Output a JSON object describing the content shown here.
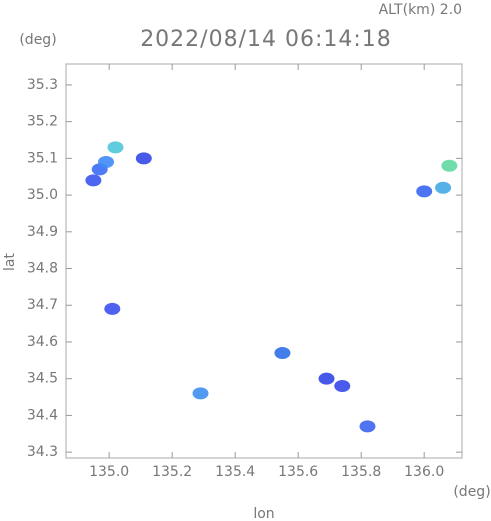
{
  "chart_data": {
    "type": "scatter",
    "title": "2022/08/14 06:14:18",
    "subtitle": "ALT(km) 2.0",
    "x_label": "lon",
    "y_label": "lat",
    "x_unit": "(deg)",
    "y_unit": "(deg)",
    "x": [
      134.95,
      134.97,
      134.99,
      135.02,
      135.11,
      135.01,
      135.29,
      135.55,
      135.69,
      135.74,
      135.82,
      136.0,
      136.06,
      136.08
    ],
    "y": [
      35.04,
      35.07,
      35.09,
      35.13,
      35.1,
      34.69,
      34.46,
      34.57,
      34.5,
      34.48,
      34.37,
      35.01,
      35.02,
      35.08
    ],
    "colors": [
      "#3a55f0",
      "#3a6cf5",
      "#3f8af5",
      "#4fc7d8",
      "#3448e8",
      "#3c50ee",
      "#3f8ef0",
      "#2f6fe8",
      "#3246e4",
      "#3548ea",
      "#3d64ef",
      "#3b66f0",
      "#43a9e4",
      "#5fd9a0"
    ],
    "xlim": [
      134.863,
      136.12
    ],
    "ylim": [
      34.284,
      35.357
    ],
    "xticks": [
      {
        "value": 135.0,
        "label": "135.0"
      },
      135.2,
      135.4,
      135.6,
      135.8,
      {
        "value": 136.0,
        "label": "136.0"
      }
    ],
    "yticks": [
      34.3,
      34.4,
      34.5,
      34.6,
      34.7,
      34.8,
      34.9,
      {
        "value": 35.0,
        "label": "35.0"
      },
      35.1,
      35.2,
      35.3
    ]
  }
}
